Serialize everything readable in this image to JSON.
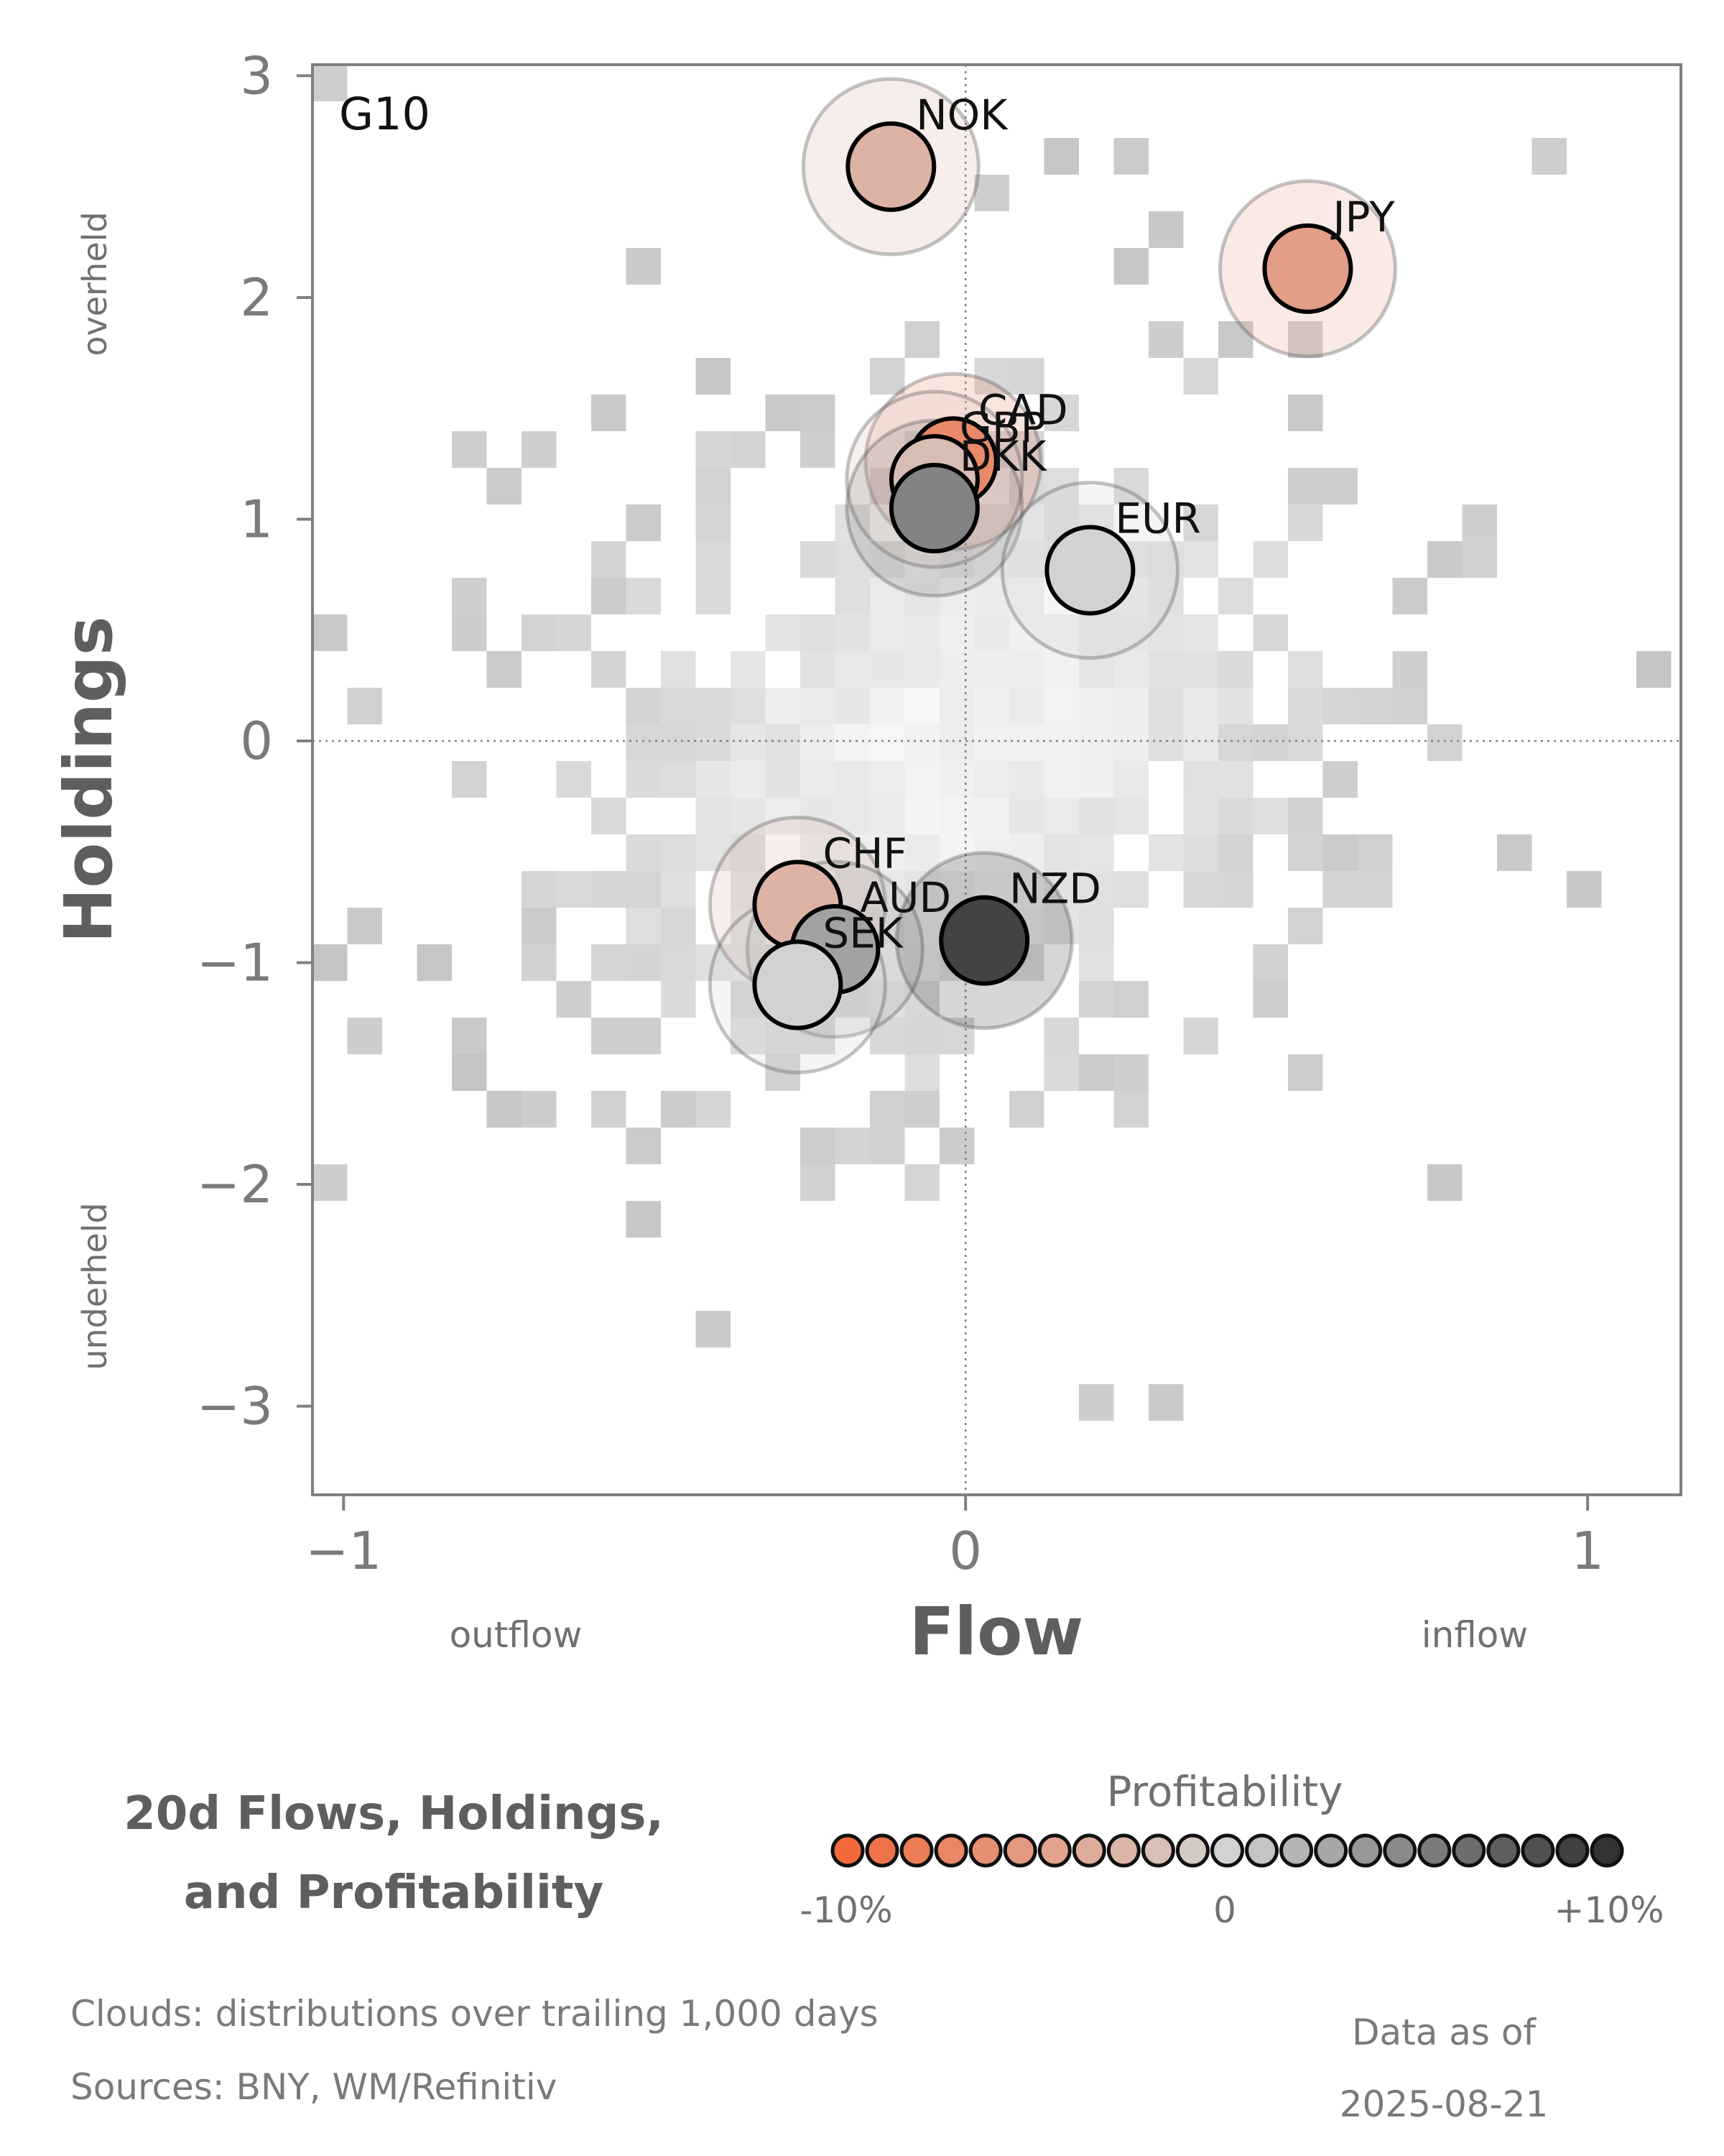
{
  "chart_data": {
    "type": "scatter",
    "panel_label": "G10",
    "xlabel": "Flow",
    "ylabel": "Holdings",
    "x_ticks": [
      -1,
      0,
      1
    ],
    "y_ticks": [
      -3,
      -2,
      -1,
      0,
      1,
      2,
      3
    ],
    "x_tick_labels": [
      "−1",
      "0",
      "1"
    ],
    "y_tick_labels": [
      "−3",
      "−2",
      "−1",
      "0",
      "1",
      "2",
      "3"
    ],
    "xlim": [
      -1.05,
      1.15
    ],
    "ylim": [
      -3.4,
      3.05
    ],
    "x_low_label": "outflow",
    "x_high_label": "inflow",
    "y_high_label": "overheld",
    "y_low_label": "underheld",
    "points": [
      {
        "name": "NOK",
        "x": -0.12,
        "y": 2.59,
        "profit": -3
      },
      {
        "name": "JPY",
        "x": 0.55,
        "y": 2.13,
        "profit": -5
      },
      {
        "name": "CAD",
        "x": -0.02,
        "y": 1.26,
        "profit": -7
      },
      {
        "name": "GBP",
        "x": -0.05,
        "y": 1.18,
        "profit": -2
      },
      {
        "name": "DKK",
        "x": -0.05,
        "y": 1.05,
        "profit": 5
      },
      {
        "name": "EUR",
        "x": 0.2,
        "y": 0.77,
        "profit": 0
      },
      {
        "name": "CHF",
        "x": -0.27,
        "y": -0.74,
        "profit": -3
      },
      {
        "name": "AUD",
        "x": -0.21,
        "y": -0.94,
        "profit": 3
      },
      {
        "name": "SEK",
        "x": -0.27,
        "y": -1.1,
        "profit": 0
      },
      {
        "name": "NZD",
        "x": 0.03,
        "y": -0.9,
        "profit": 9
      }
    ]
  },
  "legend": {
    "title_line1": "20d Flows, Holdings,",
    "title_line2": "and Profitability",
    "profit_title": "Profitability",
    "scale_min_label": "-10%",
    "scale_mid_label": "0",
    "scale_max_label": "+10%",
    "scale_min": -10,
    "scale_max": 10,
    "swatch_count": 23
  },
  "colors": {
    "negative": "#f26a3c",
    "neutral": "#d2d2d2",
    "positive": "#333333",
    "cloud": "#c8c8c8",
    "axis": "#808080"
  },
  "footer": {
    "clouds_note": "Clouds:  distributions over trailing 1,000 days",
    "sources": "Sources:  BNY, WM/Refinitiv",
    "as_of_label": "Data as of",
    "as_of_date": "2025-08-21"
  }
}
